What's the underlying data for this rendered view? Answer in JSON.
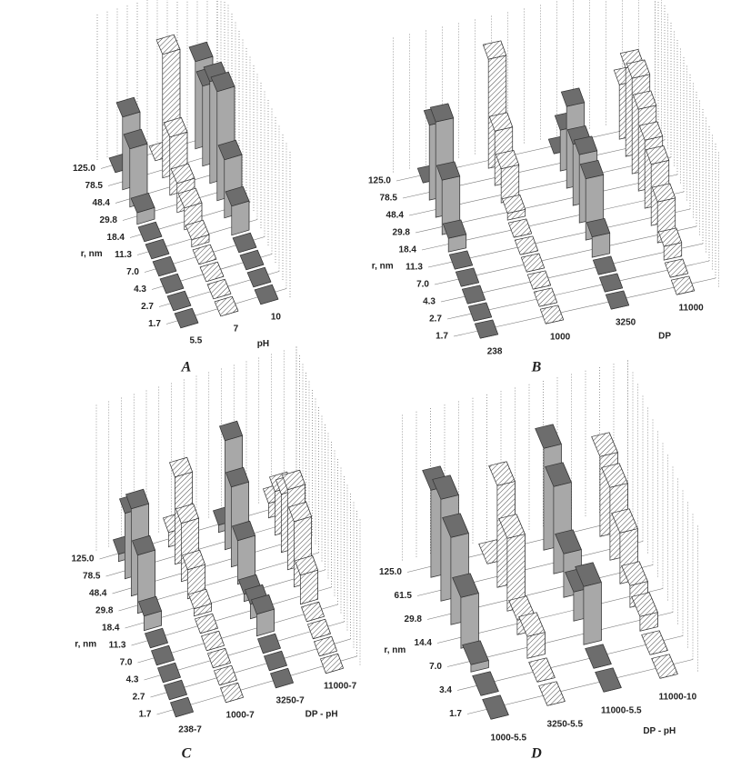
{
  "chart_data": [
    {
      "type": "bar3d",
      "label": "A",
      "xlabel": "pH",
      "ylabel": "r, nm",
      "zlim": [
        0,
        100
      ],
      "categories": [
        "1.7",
        "2.7",
        "4.3",
        "7.0",
        "11.3",
        "18.4",
        "29.8",
        "48.4",
        "78.5",
        "125.0"
      ],
      "series": [
        {
          "name": "5.5",
          "color": "#a8a8a8",
          "hatch": false,
          "values": [
            0,
            0,
            0,
            0,
            0,
            0,
            8,
            40,
            50,
            0
          ]
        },
        {
          "name": "7",
          "color": "#ffffff",
          "hatch": true,
          "values": [
            0,
            0,
            0,
            0,
            5,
            15,
            20,
            40,
            85,
            0
          ]
        },
        {
          "name": "10",
          "color": "#a8a8a8",
          "hatch": false,
          "values": [
            0,
            0,
            0,
            0,
            20,
            40,
            75,
            70,
            55,
            60
          ]
        }
      ]
    },
    {
      "type": "bar3d",
      "label": "B",
      "xlabel": "DP",
      "ylabel": "r, nm",
      "zlim": [
        0,
        100
      ],
      "categories": [
        "1.7",
        "2.7",
        "4.3",
        "7.0",
        "11.3",
        "18.4",
        "29.8",
        "48.4",
        "78.5",
        "125.0"
      ],
      "series": [
        {
          "name": "238",
          "color": "#a8a8a8",
          "hatch": false,
          "values": [
            0,
            0,
            0,
            0,
            0,
            10,
            40,
            70,
            55,
            0
          ]
        },
        {
          "name": "1000",
          "color": "#ffffff",
          "hatch": true,
          "values": [
            0,
            0,
            0,
            0,
            0,
            0,
            5,
            25,
            40,
            80
          ]
        },
        {
          "name": "3250",
          "color": "#a8a8a8",
          "hatch": false,
          "values": [
            0,
            0,
            0,
            15,
            45,
            50,
            45,
            60,
            30,
            0
          ]
        },
        {
          "name": "11000",
          "color": "#ffffff",
          "hatch": true,
          "values": [
            0,
            0,
            10,
            30,
            45,
            50,
            60,
            70,
            65,
            40
          ]
        }
      ]
    },
    {
      "type": "bar3d",
      "label": "C",
      "xlabel": "DP - pH",
      "ylabel": "r, nm",
      "zlim": [
        0,
        100
      ],
      "categories": [
        "1.7",
        "2.7",
        "4.3",
        "7.0",
        "11.3",
        "18.4",
        "29.8",
        "48.4",
        "78.5",
        "125.0"
      ],
      "series": [
        {
          "name": "238-7",
          "color": "#a8a8a8",
          "hatch": false,
          "values": [
            0,
            0,
            0,
            0,
            0,
            10,
            40,
            60,
            45,
            5
          ]
        },
        {
          "name": "1000-7",
          "color": "#ffffff",
          "hatch": true,
          "values": [
            0,
            0,
            0,
            0,
            0,
            5,
            20,
            40,
            60,
            10
          ]
        },
        {
          "name": "3250-7",
          "color": "#a8a8a8",
          "hatch": false,
          "values": [
            0,
            0,
            0,
            15,
            10,
            5,
            30,
            55,
            75,
            5
          ]
        },
        {
          "name": "11000-7",
          "color": "#ffffff",
          "hatch": true,
          "values": [
            0,
            0,
            0,
            0,
            20,
            45,
            55,
            40,
            30,
            10
          ]
        }
      ]
    },
    {
      "type": "bar3d",
      "label": "D",
      "xlabel": "DP - pH",
      "ylabel": "r, nm",
      "zlim": [
        0,
        100
      ],
      "categories": [
        "1.7",
        "3.4",
        "7.0",
        "14.4",
        "29.8",
        "61.5",
        "125.0"
      ],
      "series": [
        {
          "name": "1000-5.5",
          "color": "#a8a8a8",
          "hatch": false,
          "values": [
            0,
            0,
            5,
            35,
            60,
            70,
            60
          ]
        },
        {
          "name": "3250-5.5",
          "color": "#ffffff",
          "hatch": true,
          "values": [
            0,
            0,
            15,
            10,
            50,
            70,
            0
          ]
        },
        {
          "name": "11000-5.5",
          "color": "#a8a8a8",
          "hatch": false,
          "values": [
            0,
            0,
            40,
            20,
            30,
            60,
            70
          ]
        },
        {
          "name": "11000-10",
          "color": "#ffffff",
          "hatch": true,
          "values": [
            0,
            0,
            10,
            15,
            35,
            50,
            55
          ]
        }
      ]
    }
  ]
}
